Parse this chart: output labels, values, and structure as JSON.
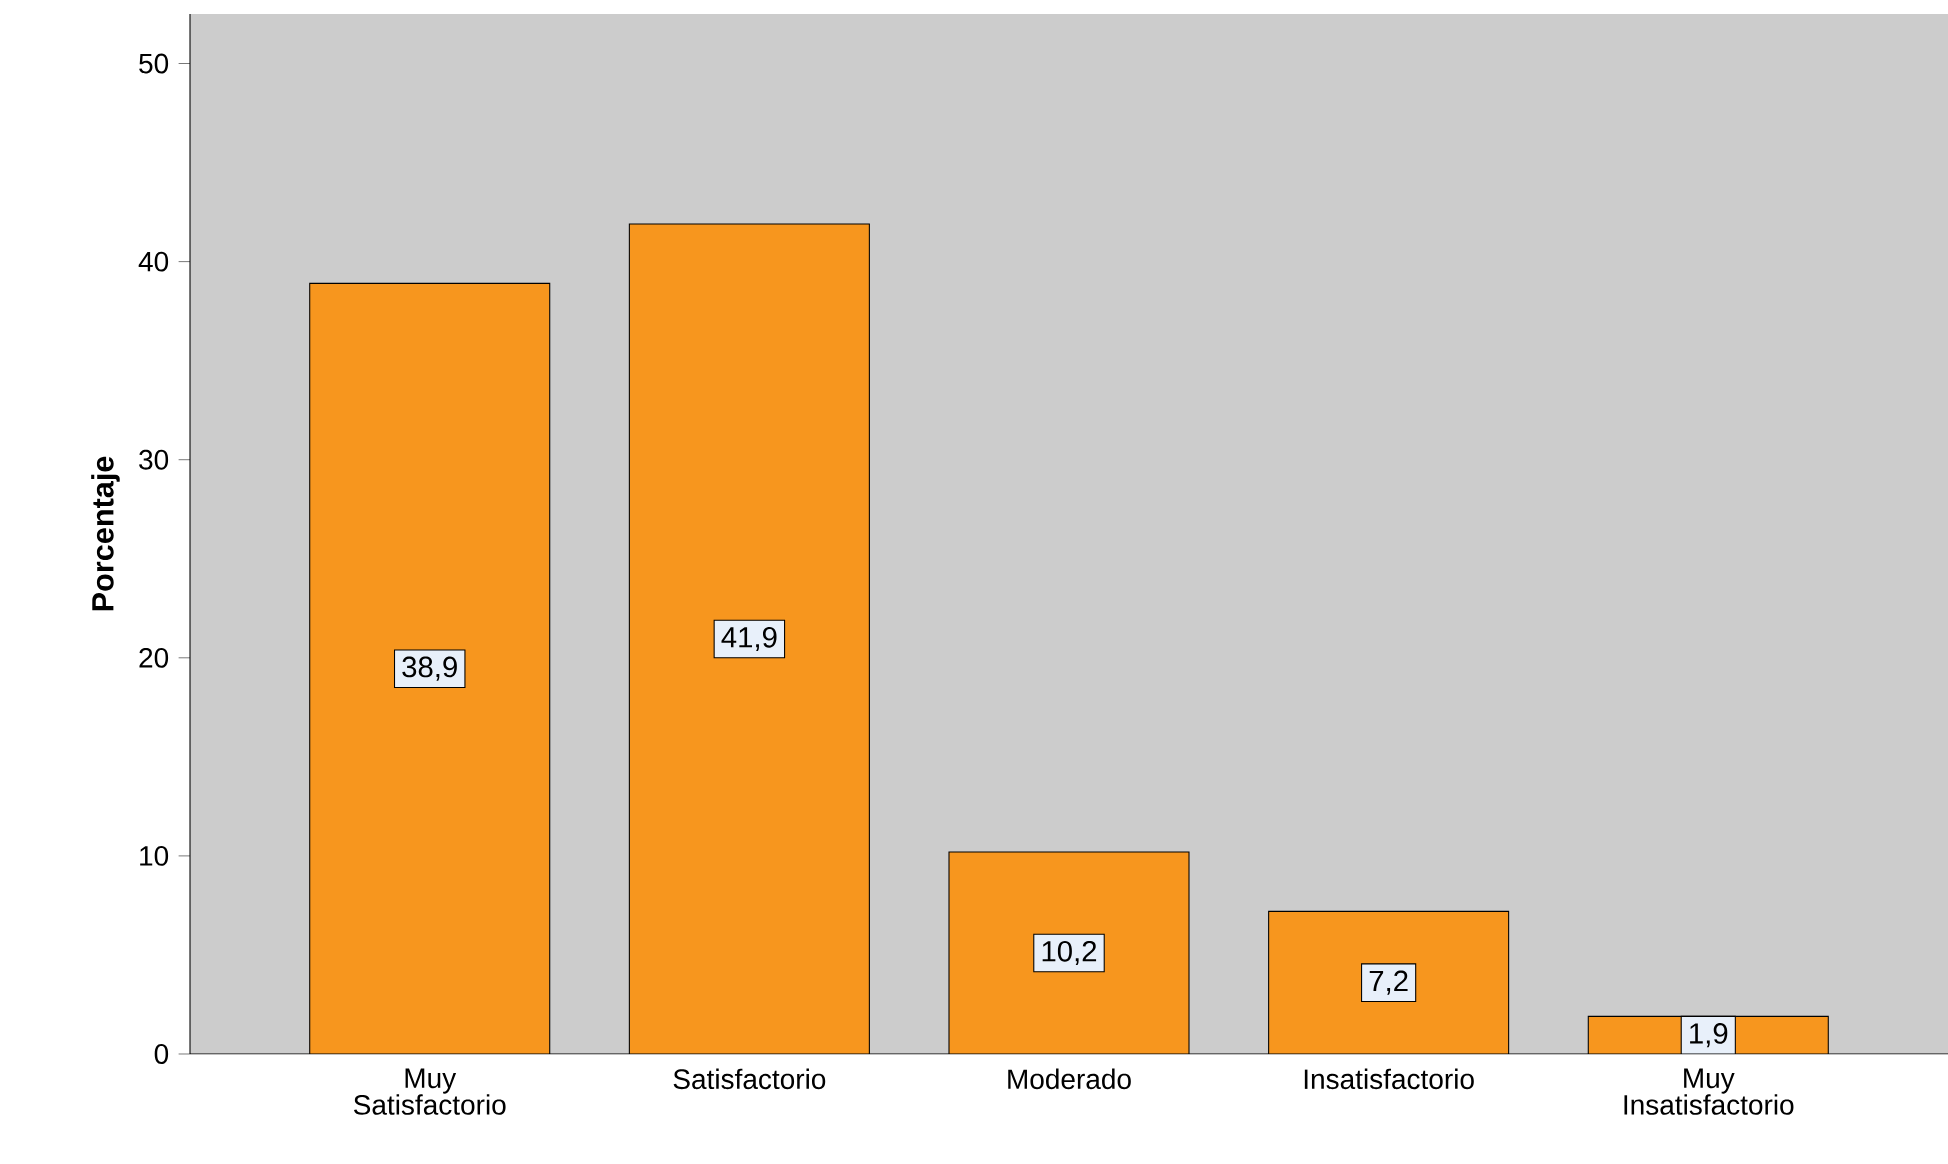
{
  "chart_data": {
    "type": "bar",
    "ylabel": "Porcentaje",
    "categories": [
      "Muy Satisfactorio",
      "Satisfactorio",
      "Moderado",
      "Insatisfactorio",
      "Muy Insatisfactorio"
    ],
    "values": [
      38.9,
      41.9,
      10.2,
      7.2,
      1.9
    ],
    "value_labels": [
      "38,9",
      "41,9",
      "10,2",
      "7,2",
      "1,9"
    ],
    "color": "#f7961e",
    "ylim": [
      0,
      52.5
    ],
    "yticks": [
      0,
      10,
      20,
      30,
      40,
      50
    ],
    "grid": false
  }
}
